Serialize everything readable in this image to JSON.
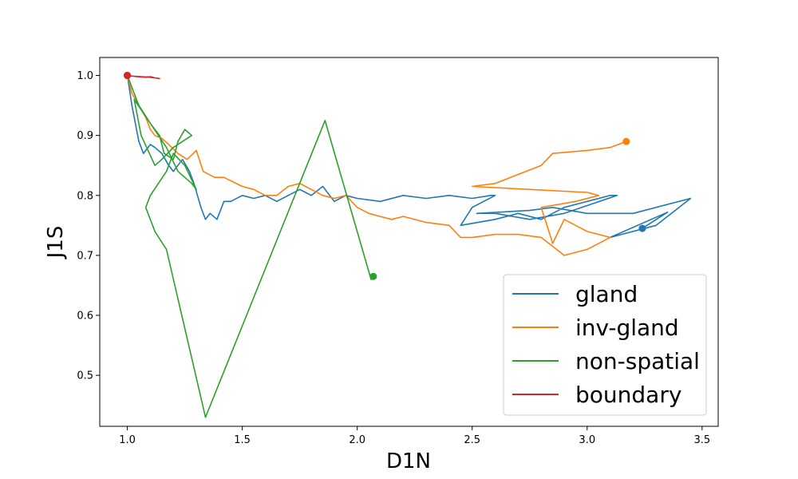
{
  "chart_data": {
    "type": "line",
    "title": "",
    "xlabel": "D1N",
    "ylabel": "J1S",
    "xlim": [
      0.88,
      3.57
    ],
    "ylim": [
      0.415,
      1.03
    ],
    "xticks": [
      1.0,
      1.5,
      2.0,
      2.5,
      3.0,
      3.5
    ],
    "xtick_labels": [
      "1.0",
      "1.5",
      "2.0",
      "2.5",
      "3.0",
      "3.5"
    ],
    "yticks": [
      0.5,
      0.6,
      0.7,
      0.8,
      0.9,
      1.0
    ],
    "ytick_labels": [
      "0.5",
      "0.6",
      "0.7",
      "0.8",
      "0.9",
      "1.0"
    ],
    "grid": false,
    "legend_position": "lower-right",
    "series": [
      {
        "name": "gland",
        "color": "#1f77b4",
        "x": [
          1.0,
          1.02,
          1.05,
          1.07,
          1.1,
          1.12,
          1.15,
          1.18,
          1.2,
          1.24,
          1.27,
          1.29,
          1.32,
          1.34,
          1.36,
          1.39,
          1.42,
          1.45,
          1.5,
          1.55,
          1.6,
          1.65,
          1.7,
          1.75,
          1.8,
          1.85,
          1.9,
          1.95,
          2.0,
          2.1,
          2.2,
          2.3,
          2.4,
          2.5,
          2.58,
          2.6,
          2.5,
          2.45,
          2.6,
          2.7,
          2.8,
          2.9,
          3.0,
          3.1,
          3.13,
          2.9,
          2.75,
          2.6,
          2.52,
          2.75,
          2.85,
          3.0,
          3.2,
          3.45,
          3.3,
          3.1,
          3.35,
          3.24
        ],
        "y": [
          1.0,
          0.95,
          0.89,
          0.87,
          0.885,
          0.88,
          0.87,
          0.85,
          0.84,
          0.86,
          0.84,
          0.82,
          0.78,
          0.76,
          0.77,
          0.76,
          0.79,
          0.79,
          0.8,
          0.795,
          0.8,
          0.79,
          0.8,
          0.81,
          0.8,
          0.815,
          0.79,
          0.8,
          0.795,
          0.79,
          0.8,
          0.795,
          0.8,
          0.795,
          0.8,
          0.8,
          0.78,
          0.75,
          0.76,
          0.77,
          0.76,
          0.78,
          0.79,
          0.8,
          0.8,
          0.77,
          0.76,
          0.77,
          0.77,
          0.775,
          0.78,
          0.77,
          0.77,
          0.795,
          0.75,
          0.73,
          0.772,
          0.745
        ]
      },
      {
        "name": "inv-gland",
        "color": "#ff7f0e",
        "x": [
          1.0,
          1.02,
          1.05,
          1.08,
          1.1,
          1.12,
          1.15,
          1.18,
          1.22,
          1.26,
          1.3,
          1.33,
          1.38,
          1.42,
          1.5,
          1.55,
          1.6,
          1.65,
          1.7,
          1.75,
          1.8,
          1.85,
          1.9,
          1.95,
          2.0,
          2.05,
          2.1,
          2.15,
          2.2,
          2.3,
          2.4,
          2.45,
          2.5,
          2.6,
          2.7,
          2.8,
          2.9,
          3.0,
          3.1,
          3.0,
          2.9,
          2.85,
          2.8,
          2.95,
          3.05,
          3.0,
          2.75,
          2.5,
          2.6,
          2.7,
          2.8,
          2.85,
          3.0,
          3.1,
          3.17
        ],
        "y": [
          1.0,
          0.97,
          0.95,
          0.93,
          0.91,
          0.9,
          0.895,
          0.885,
          0.87,
          0.86,
          0.875,
          0.84,
          0.83,
          0.83,
          0.815,
          0.81,
          0.8,
          0.8,
          0.815,
          0.82,
          0.81,
          0.8,
          0.795,
          0.8,
          0.78,
          0.77,
          0.765,
          0.76,
          0.765,
          0.755,
          0.75,
          0.73,
          0.73,
          0.735,
          0.735,
          0.73,
          0.7,
          0.71,
          0.73,
          0.74,
          0.76,
          0.72,
          0.78,
          0.79,
          0.8,
          0.805,
          0.81,
          0.815,
          0.82,
          0.835,
          0.85,
          0.87,
          0.875,
          0.88,
          0.89
        ]
      },
      {
        "name": "non-spatial",
        "color": "#2ca02c",
        "x": [
          1.0,
          1.03,
          1.05,
          1.1,
          1.14,
          1.16,
          1.2,
          1.22,
          1.25,
          1.28,
          1.2,
          1.15,
          1.12,
          1.06,
          1.03,
          1.1,
          1.17,
          1.22,
          1.25,
          1.28,
          1.3,
          1.25,
          1.2,
          1.17,
          1.1,
          1.08,
          1.12,
          1.17,
          1.34,
          1.86,
          2.06,
          2.07
        ],
        "y": [
          1.0,
          0.97,
          0.95,
          0.92,
          0.9,
          0.87,
          0.86,
          0.89,
          0.91,
          0.9,
          0.88,
          0.86,
          0.85,
          0.9,
          0.96,
          0.92,
          0.88,
          0.84,
          0.83,
          0.82,
          0.81,
          0.85,
          0.87,
          0.84,
          0.8,
          0.78,
          0.74,
          0.71,
          0.43,
          0.925,
          0.66,
          0.665
        ]
      },
      {
        "name": "boundary",
        "color": "#d62728",
        "x": [
          1.0,
          1.04,
          1.08,
          1.1,
          1.12,
          1.14,
          1.1,
          1.06,
          1.02,
          1.0
        ],
        "y": [
          1.0,
          0.998,
          0.997,
          0.998,
          0.996,
          0.995,
          0.997,
          0.998,
          0.999,
          1.0
        ]
      }
    ]
  }
}
